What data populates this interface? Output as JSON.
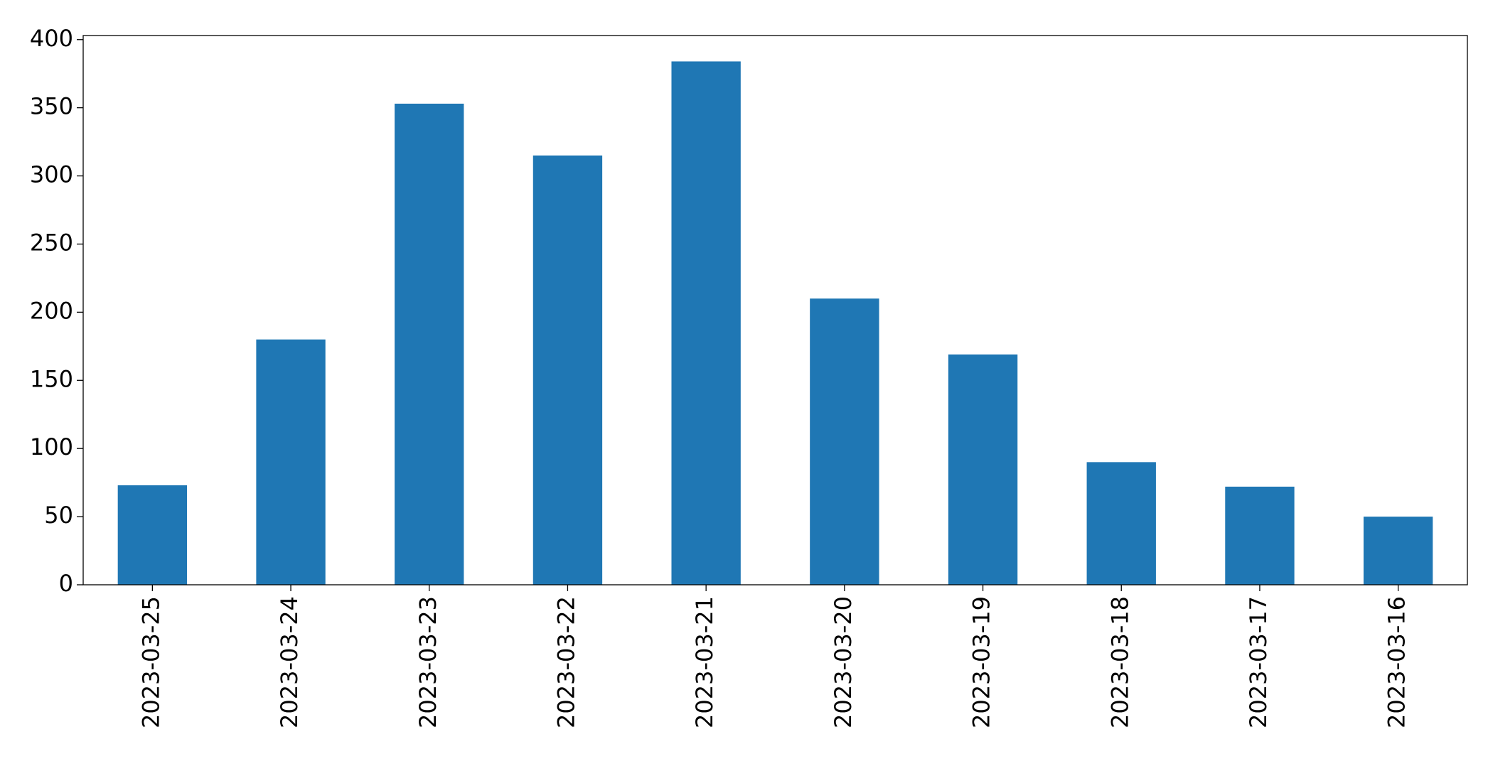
{
  "chart_data": {
    "type": "bar",
    "categories": [
      "2023-03-25",
      "2023-03-24",
      "2023-03-23",
      "2023-03-22",
      "2023-03-21",
      "2023-03-20",
      "2023-03-19",
      "2023-03-18",
      "2023-03-17",
      "2023-03-16"
    ],
    "values": [
      73,
      180,
      353,
      315,
      384,
      210,
      169,
      90,
      72,
      50
    ],
    "color": "#1f77b4",
    "ylim": [
      0,
      403
    ],
    "yticks": [
      0,
      50,
      100,
      150,
      200,
      250,
      300,
      350,
      400
    ],
    "grid": false
  }
}
